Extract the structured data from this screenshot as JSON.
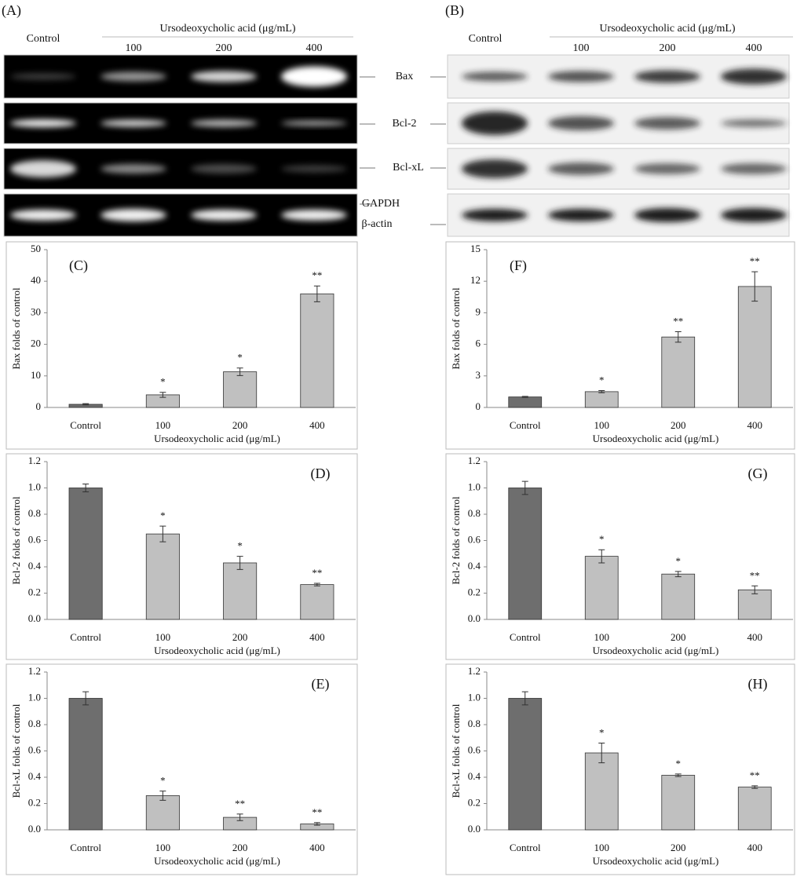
{
  "blots": [
    {
      "panel": "(A)",
      "control": "Control",
      "treatment": "Ursodeoxycholic acid (μg/mL)",
      "doses": [
        "100",
        "200",
        "400"
      ]
    },
    {
      "panel": "(B)",
      "control": "Control",
      "treatment": "Ursodeoxycholic acid (μg/mL)",
      "doses": [
        "100",
        "200",
        "400"
      ]
    }
  ],
  "blot_markers": [
    "Bax",
    "Bcl-2",
    "Bcl-xL",
    "GAPDH",
    "β-actin"
  ],
  "chart_data": [
    {
      "type": "bar",
      "panel": "(C)",
      "ylabel": "Bax folds of control",
      "xlabel": "Ursodeoxycholic acid (μg/mL)",
      "categories": [
        "Control",
        "100",
        "200",
        "400"
      ],
      "values": [
        1,
        4,
        11.3,
        36
      ],
      "errors": [
        0.2,
        0.8,
        1.2,
        2.5
      ],
      "significance": [
        null,
        "*",
        "*",
        "**"
      ],
      "colors": [
        "#6e6e6e",
        "#c0c0c0",
        "#c0c0c0",
        "#c0c0c0"
      ],
      "ylim": [
        0,
        50
      ],
      "yticks": [
        0,
        10,
        20,
        30,
        40,
        50
      ]
    },
    {
      "type": "bar",
      "panel": "(D)",
      "ylabel": "Bcl-2 folds of control",
      "xlabel": "Ursodeoxycholic acid (μg/mL)",
      "categories": [
        "Control",
        "100",
        "200",
        "400"
      ],
      "values": [
        1.0,
        0.65,
        0.43,
        0.265
      ],
      "errors": [
        0.03,
        0.06,
        0.05,
        0.01
      ],
      "significance": [
        null,
        "*",
        "*",
        "**"
      ],
      "colors": [
        "#6e6e6e",
        "#c0c0c0",
        "#c0c0c0",
        "#c0c0c0"
      ],
      "ylim": [
        0,
        1.2
      ],
      "yticks": [
        {
          "value": 0,
          "label": "0.0"
        },
        {
          "value": 0.2,
          "label": "0.2"
        },
        {
          "value": 0.4,
          "label": "0.4"
        },
        {
          "value": 0.6,
          "label": "0.6"
        },
        {
          "value": 0.8,
          "label": "0.8"
        },
        {
          "value": 1,
          "label": "1.0"
        },
        {
          "value": 1.2,
          "label": "1.2"
        }
      ]
    },
    {
      "type": "bar",
      "panel": "(E)",
      "ylabel": "Bcl-xL folds of control",
      "xlabel": "Ursodeoxycholic acid (μg/mL)",
      "categories": [
        "Control",
        "100",
        "200",
        "400"
      ],
      "values": [
        1.0,
        0.26,
        0.095,
        0.045
      ],
      "errors": [
        0.05,
        0.035,
        0.025,
        0.01
      ],
      "significance": [
        null,
        "*",
        "**",
        "**"
      ],
      "colors": [
        "#6e6e6e",
        "#c0c0c0",
        "#c0c0c0",
        "#c0c0c0"
      ],
      "ylim": [
        0,
        1.2
      ],
      "yticks": [
        {
          "value": 0,
          "label": "0.0"
        },
        {
          "value": 0.2,
          "label": "0.2"
        },
        {
          "value": 0.4,
          "label": "0.4"
        },
        {
          "value": 0.6,
          "label": "0.6"
        },
        {
          "value": 0.8,
          "label": "0.8"
        },
        {
          "value": 1,
          "label": "1.0"
        },
        {
          "value": 1.2,
          "label": "1.2"
        }
      ]
    },
    {
      "type": "bar",
      "panel": "(F)",
      "ylabel": "Bax folds of control",
      "xlabel": "Ursodeoxycholic acid (μg/mL)",
      "categories": [
        "Control",
        "100",
        "200",
        "400"
      ],
      "values": [
        1,
        1.5,
        6.7,
        11.5
      ],
      "errors": [
        0.05,
        0.1,
        0.5,
        1.4
      ],
      "significance": [
        null,
        "*",
        "**",
        "**"
      ],
      "colors": [
        "#6e6e6e",
        "#c0c0c0",
        "#c0c0c0",
        "#c0c0c0"
      ],
      "ylim": [
        0,
        15
      ],
      "yticks": [
        0,
        3,
        6,
        9,
        12,
        15
      ]
    },
    {
      "type": "bar",
      "panel": "(G)",
      "ylabel": "Bcl-2 folds of control",
      "xlabel": "Ursodeoxycholic acid (μg/mL)",
      "categories": [
        "Control",
        "100",
        "200",
        "400"
      ],
      "values": [
        1.0,
        0.48,
        0.345,
        0.225
      ],
      "errors": [
        0.05,
        0.05,
        0.02,
        0.03
      ],
      "significance": [
        null,
        "*",
        "*",
        "**"
      ],
      "colors": [
        "#6e6e6e",
        "#c0c0c0",
        "#c0c0c0",
        "#c0c0c0"
      ],
      "ylim": [
        0,
        1.2
      ],
      "yticks": [
        {
          "value": 0,
          "label": "0.0"
        },
        {
          "value": 0.2,
          "label": "0.2"
        },
        {
          "value": 0.4,
          "label": "0.4"
        },
        {
          "value": 0.6,
          "label": "0.6"
        },
        {
          "value": 0.8,
          "label": "0.8"
        },
        {
          "value": 1,
          "label": "1.0"
        },
        {
          "value": 1.2,
          "label": "1.2"
        }
      ]
    },
    {
      "type": "bar",
      "panel": "(H)",
      "ylabel": "Bcl-xL folds of control",
      "xlabel": "Ursodeoxycholic acid (μg/mL)",
      "categories": [
        "Control",
        "100",
        "200",
        "400"
      ],
      "values": [
        1.0,
        0.585,
        0.415,
        0.325
      ],
      "errors": [
        0.05,
        0.075,
        0.01,
        0.01
      ],
      "significance": [
        null,
        "*",
        "*",
        "**"
      ],
      "colors": [
        "#6e6e6e",
        "#c0c0c0",
        "#c0c0c0",
        "#c0c0c0"
      ],
      "ylim": [
        0,
        1.2
      ],
      "yticks": [
        {
          "value": 0,
          "label": "0.0"
        },
        {
          "value": 0.2,
          "label": "0.2"
        },
        {
          "value": 0.4,
          "label": "0.4"
        },
        {
          "value": 0.6,
          "label": "0.6"
        },
        {
          "value": 0.8,
          "label": "0.8"
        },
        {
          "value": 1,
          "label": "1.0"
        },
        {
          "value": 1.2,
          "label": "1.2"
        }
      ]
    }
  ]
}
